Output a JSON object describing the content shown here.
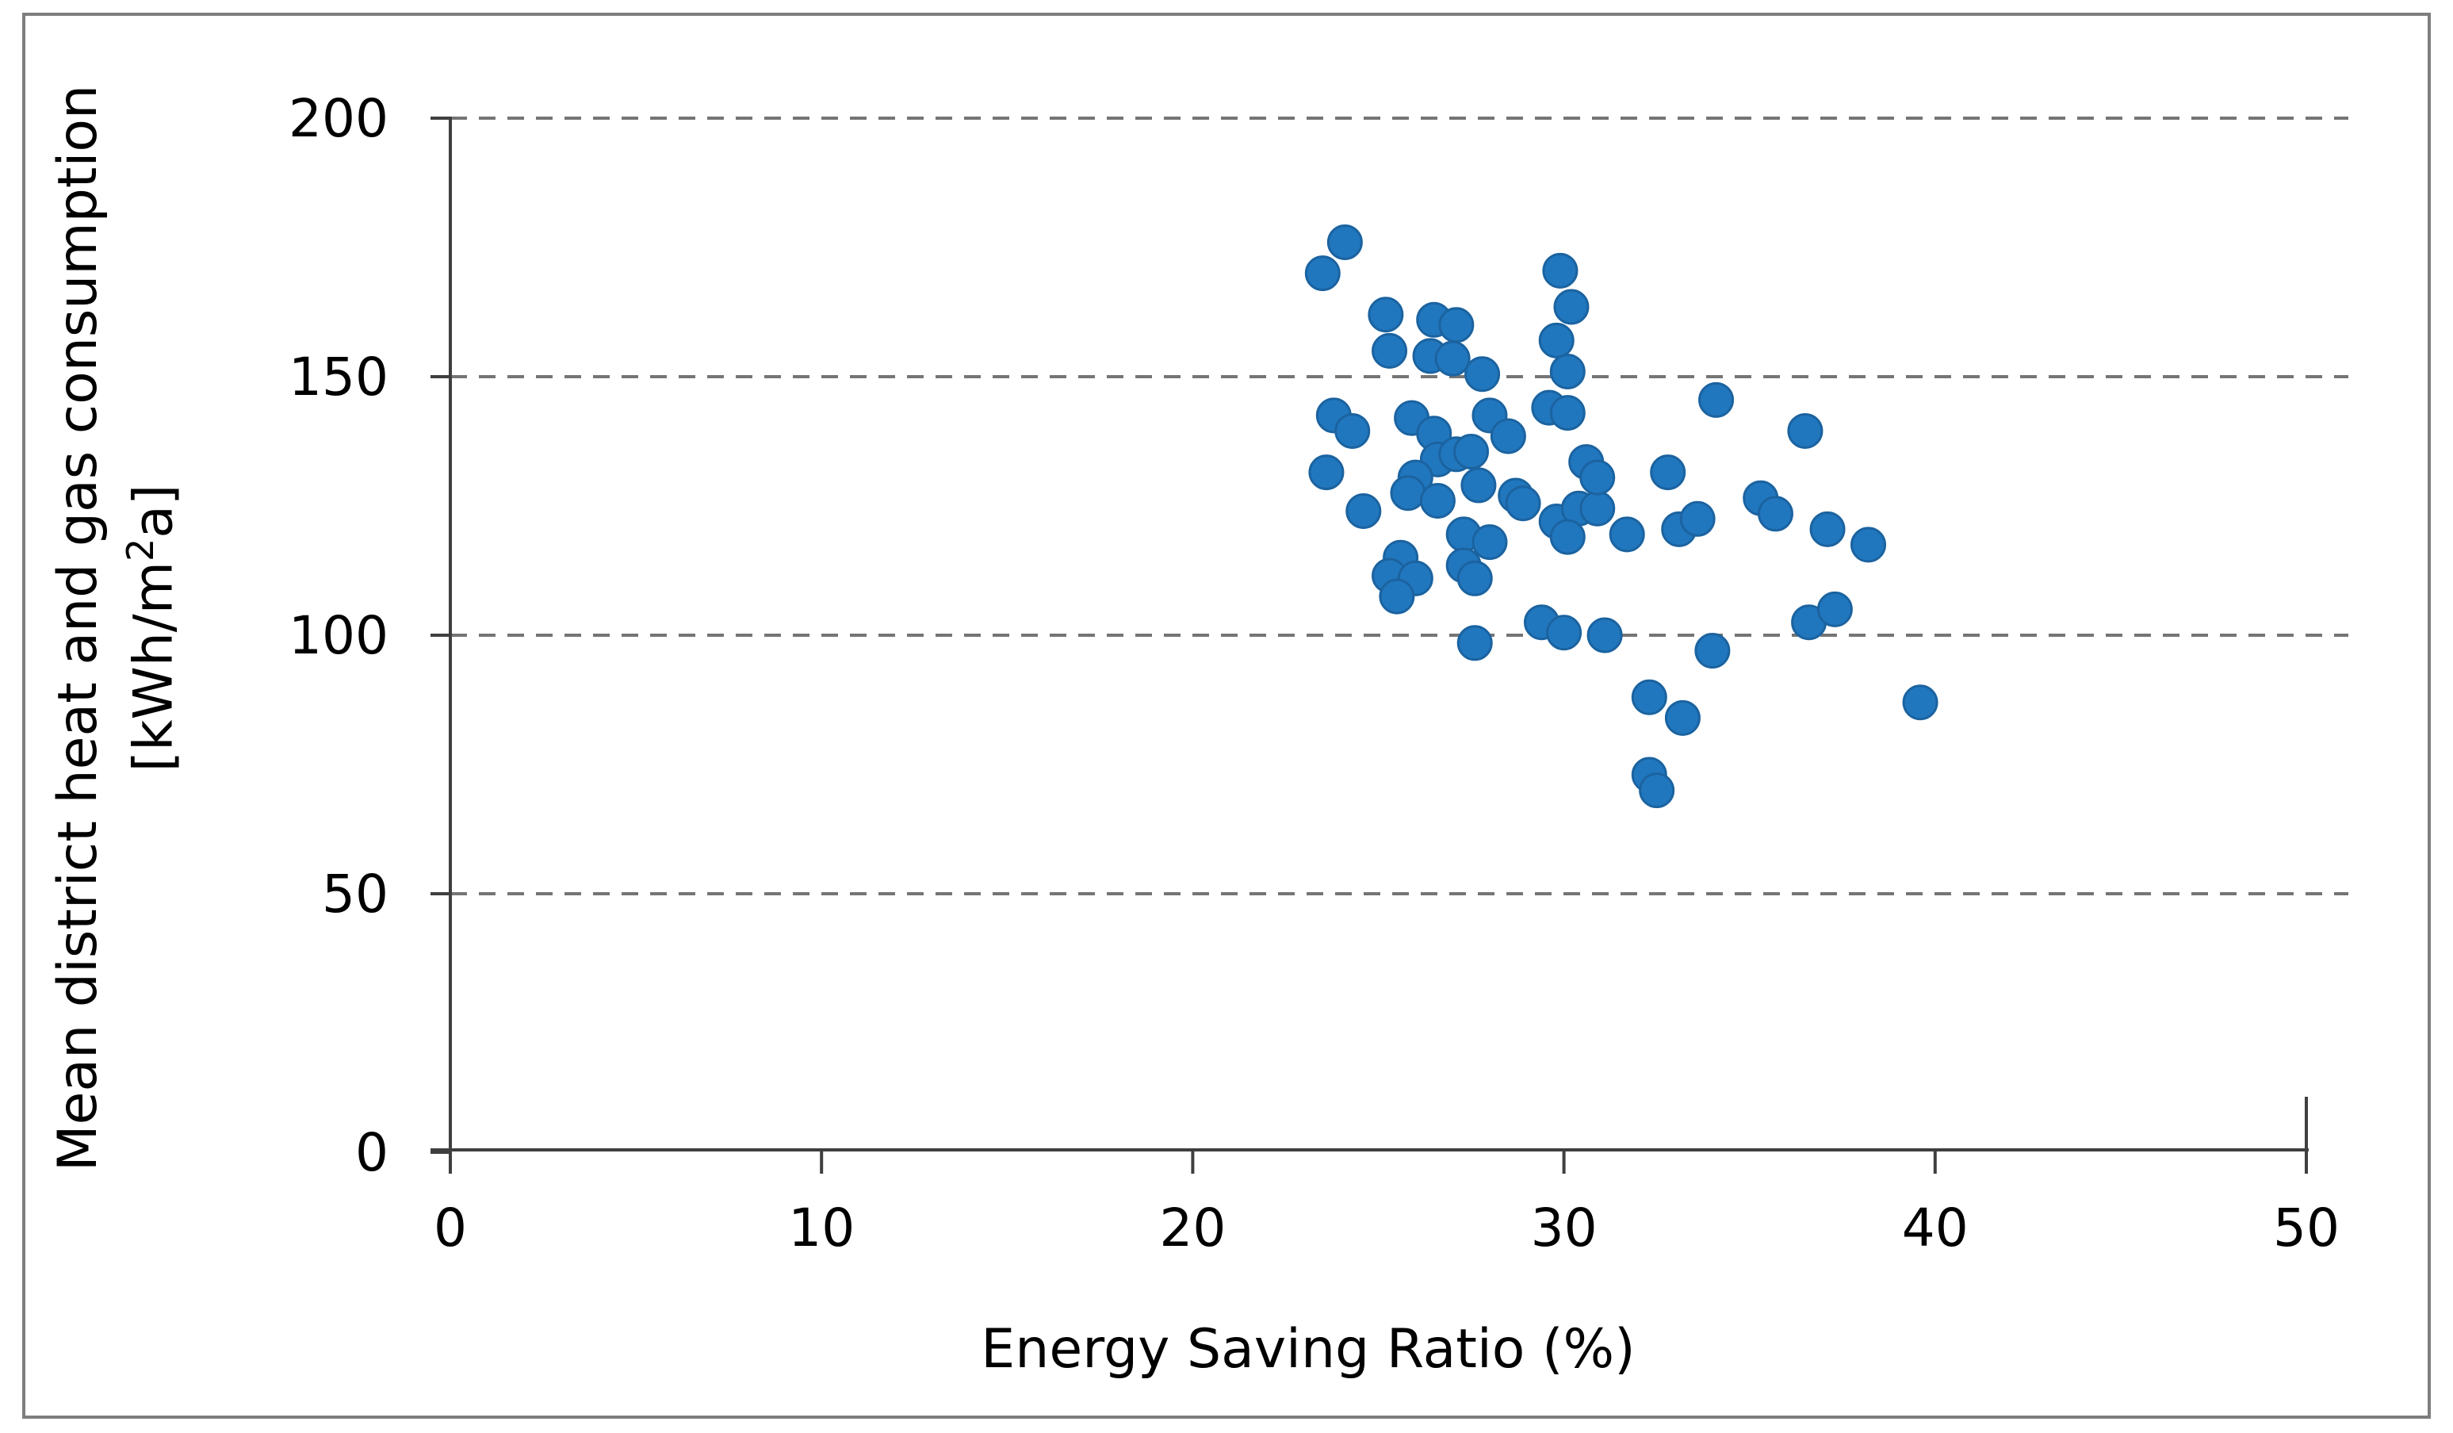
{
  "chart_data": {
    "type": "scatter",
    "title": "",
    "xlabel": "Energy Saving Ratio (%)",
    "ylabel_line1": "Mean district heat and gas consumption",
    "ylabel_line2_pre": "[kWh/m",
    "ylabel_line2_sup": "2",
    "ylabel_line2_post": "a]",
    "xlim": [
      0,
      50
    ],
    "ylim": [
      0,
      200
    ],
    "x_ticks": [
      0,
      10,
      20,
      30,
      40,
      50
    ],
    "y_ticks": [
      0,
      50,
      100,
      150,
      200
    ],
    "grid": "horizontal-dashed",
    "legend_position": "none",
    "marker": {
      "shape": "circle",
      "fill": "#2177BE",
      "stroke": "#1B63A0",
      "radius_px": 21
    },
    "colors": {
      "gridline": "#757575",
      "axis": "#3f3f3f",
      "text": "#000000",
      "figure_border": "#7E7E7E"
    },
    "points": [
      [
        24.1,
        176
      ],
      [
        23.5,
        170
      ],
      [
        25.2,
        162
      ],
      [
        26.5,
        161
      ],
      [
        27.1,
        160
      ],
      [
        25.3,
        155
      ],
      [
        26.4,
        154
      ],
      [
        27.0,
        153.5
      ],
      [
        27.8,
        150.5
      ],
      [
        29.9,
        170.5
      ],
      [
        30.2,
        163.5
      ],
      [
        29.8,
        157
      ],
      [
        30.1,
        151
      ],
      [
        29.6,
        144
      ],
      [
        30.1,
        143
      ],
      [
        23.8,
        142.5
      ],
      [
        24.3,
        139.5
      ],
      [
        23.6,
        131.5
      ],
      [
        25.9,
        142
      ],
      [
        26.5,
        139
      ],
      [
        28.0,
        142.5
      ],
      [
        28.5,
        138.5
      ],
      [
        26.6,
        134
      ],
      [
        27.1,
        135
      ],
      [
        27.5,
        135.5
      ],
      [
        26.0,
        130.5
      ],
      [
        27.7,
        129
      ],
      [
        25.8,
        127.5
      ],
      [
        26.6,
        126
      ],
      [
        24.6,
        124
      ],
      [
        28.7,
        127
      ],
      [
        28.9,
        125.5
      ],
      [
        27.3,
        119.5
      ],
      [
        28.0,
        118
      ],
      [
        25.6,
        115
      ],
      [
        25.3,
        111.5
      ],
      [
        26.0,
        111
      ],
      [
        25.5,
        107.5
      ],
      [
        27.3,
        113.5
      ],
      [
        27.6,
        111
      ],
      [
        29.8,
        122
      ],
      [
        30.4,
        124.5
      ],
      [
        30.9,
        124.5
      ],
      [
        30.1,
        119
      ],
      [
        31.7,
        119.5
      ],
      [
        33.1,
        120.5
      ],
      [
        33.6,
        122.5
      ],
      [
        35.3,
        126.5
      ],
      [
        35.7,
        123.5
      ],
      [
        37.1,
        120.5
      ],
      [
        38.2,
        117.5
      ],
      [
        30.6,
        133.5
      ],
      [
        30.9,
        130.5
      ],
      [
        32.8,
        131.5
      ],
      [
        34.1,
        145.5
      ],
      [
        36.5,
        139.5
      ],
      [
        27.6,
        98.5
      ],
      [
        29.4,
        102.5
      ],
      [
        30.0,
        100.5
      ],
      [
        31.1,
        100
      ],
      [
        34.0,
        97
      ],
      [
        36.6,
        102.5
      ],
      [
        37.3,
        105
      ],
      [
        39.6,
        87
      ],
      [
        32.3,
        88
      ],
      [
        33.2,
        84
      ],
      [
        32.3,
        73
      ],
      [
        32.5,
        70
      ]
    ]
  }
}
